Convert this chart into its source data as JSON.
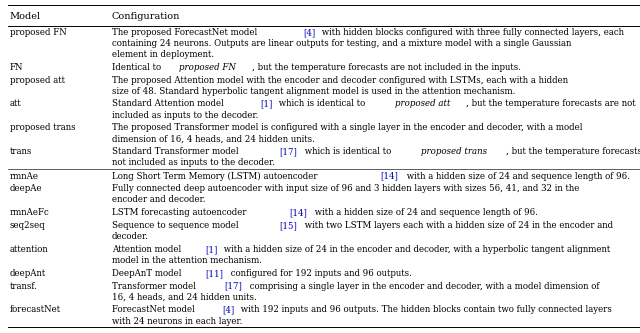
{
  "title_col1": "Model",
  "title_col2": "Configuration",
  "rows": [
    {
      "model": "proposed FN",
      "lines": [
        [
          [
            "The proposed ForecastNet model ",
            "normal",
            "black"
          ],
          [
            "[4]",
            "normal",
            "blue"
          ],
          [
            " with hidden blocks configured with three fully connected layers, each",
            "normal",
            "black"
          ]
        ],
        [
          [
            "containing 24 neurons. Outputs are linear outputs for testing, and a mixture model with a single Gaussian",
            "normal",
            "black"
          ]
        ],
        [
          [
            "element in deployment.",
            "normal",
            "black"
          ]
        ]
      ]
    },
    {
      "model": "FN",
      "lines": [
        [
          [
            "Identical to ",
            "normal",
            "black"
          ],
          [
            "proposed FN",
            "italic",
            "black"
          ],
          [
            ", but the temperature forecasts are not included in the inputs.",
            "normal",
            "black"
          ]
        ]
      ]
    },
    {
      "model": "proposed att",
      "lines": [
        [
          [
            "The proposed Attention model with the encoder and decoder configured with LSTMs, each with a hidden",
            "normal",
            "black"
          ]
        ],
        [
          [
            "size of 48. Standard hyperbolic tangent alignment model is used in the attention mechanism.",
            "normal",
            "black"
          ]
        ]
      ]
    },
    {
      "model": "att",
      "lines": [
        [
          [
            "Standard Attention model ",
            "normal",
            "black"
          ],
          [
            "[1]",
            "normal",
            "blue"
          ],
          [
            " which is identical to ",
            "normal",
            "black"
          ],
          [
            "proposed att",
            "italic",
            "black"
          ],
          [
            ", but the temperature forecasts are not",
            "normal",
            "black"
          ]
        ],
        [
          [
            "included as inputs to the decoder.",
            "normal",
            "black"
          ]
        ]
      ]
    },
    {
      "model": "proposed trans",
      "lines": [
        [
          [
            "The proposed Transformer model is configured with a single layer in the encoder and decoder, with a model",
            "normal",
            "black"
          ]
        ],
        [
          [
            "dimension of 16, 4 heads, and 24 hidden units.",
            "normal",
            "black"
          ]
        ]
      ]
    },
    {
      "model": "trans",
      "lines": [
        [
          [
            "Standard Transformer model ",
            "normal",
            "black"
          ],
          [
            "[17]",
            "normal",
            "blue"
          ],
          [
            " which is identical to ",
            "normal",
            "black"
          ],
          [
            "proposed trans",
            "italic",
            "black"
          ],
          [
            ", but the temperature forecasts are",
            "normal",
            "black"
          ]
        ],
        [
          [
            "not included as inputs to the decoder.",
            "normal",
            "black"
          ]
        ]
      ]
    },
    {
      "model": "rmnAe",
      "separator_above": true,
      "lines": [
        [
          [
            "Long Short Term Memory (LSTM) autoencoder ",
            "normal",
            "black"
          ],
          [
            "[14]",
            "normal",
            "blue"
          ],
          [
            " with a hidden size of 24 and sequence length of 96.",
            "normal",
            "black"
          ]
        ]
      ]
    },
    {
      "model": "deepAe",
      "lines": [
        [
          [
            "Fully connected deep autoencoder with input size of 96 and 3 hidden layers with sizes 56, 41, and 32 in the",
            "normal",
            "black"
          ]
        ],
        [
          [
            "encoder and decoder.",
            "normal",
            "black"
          ]
        ]
      ]
    },
    {
      "model": "rmnAeFc",
      "lines": [
        [
          [
            "LSTM forecasting autoencoder ",
            "normal",
            "black"
          ],
          [
            "[14]",
            "normal",
            "blue"
          ],
          [
            " with a hidden size of 24 and sequence length of 96.",
            "normal",
            "black"
          ]
        ]
      ]
    },
    {
      "model": "seq2seq",
      "lines": [
        [
          [
            "Sequence to sequence model ",
            "normal",
            "black"
          ],
          [
            "[15]",
            "normal",
            "blue"
          ],
          [
            " with two LSTM layers each with a hidden size of 24 in the encoder and",
            "normal",
            "black"
          ]
        ],
        [
          [
            "decoder.",
            "normal",
            "black"
          ]
        ]
      ]
    },
    {
      "model": "attention",
      "lines": [
        [
          [
            "Attention model ",
            "normal",
            "black"
          ],
          [
            "[1]",
            "normal",
            "blue"
          ],
          [
            " with a hidden size of 24 in the encoder and decoder, with a hyperbolic tangent alignment",
            "normal",
            "black"
          ]
        ],
        [
          [
            "model in the attention mechanism.",
            "normal",
            "black"
          ]
        ]
      ]
    },
    {
      "model": "deepAnt",
      "lines": [
        [
          [
            "DeepAnT model ",
            "normal",
            "black"
          ],
          [
            "[11]",
            "normal",
            "blue"
          ],
          [
            " configured for 192 inputs and 96 outputs.",
            "normal",
            "black"
          ]
        ]
      ]
    },
    {
      "model": "transf.",
      "lines": [
        [
          [
            "Transformer model ",
            "normal",
            "black"
          ],
          [
            "[17]",
            "normal",
            "blue"
          ],
          [
            " comprising a single layer in the encoder and decoder, with a model dimension of",
            "normal",
            "black"
          ]
        ],
        [
          [
            "16, 4 heads, and 24 hidden units.",
            "normal",
            "black"
          ]
        ]
      ]
    },
    {
      "model": "forecastNet",
      "lines": [
        [
          [
            "ForecastNet model ",
            "normal",
            "black"
          ],
          [
            "[4]",
            "normal",
            "blue"
          ],
          [
            " with 192 inputs and 96 outputs. The hidden blocks contain two fully connected layers",
            "normal",
            "black"
          ]
        ],
        [
          [
            "with 24 neurons in each layer.",
            "normal",
            "black"
          ]
        ]
      ]
    }
  ],
  "ref_color": "#0000bb",
  "font_size": 6.2,
  "header_font_size": 7.0,
  "fig_width": 6.4,
  "fig_height": 3.33,
  "dpi": 100
}
